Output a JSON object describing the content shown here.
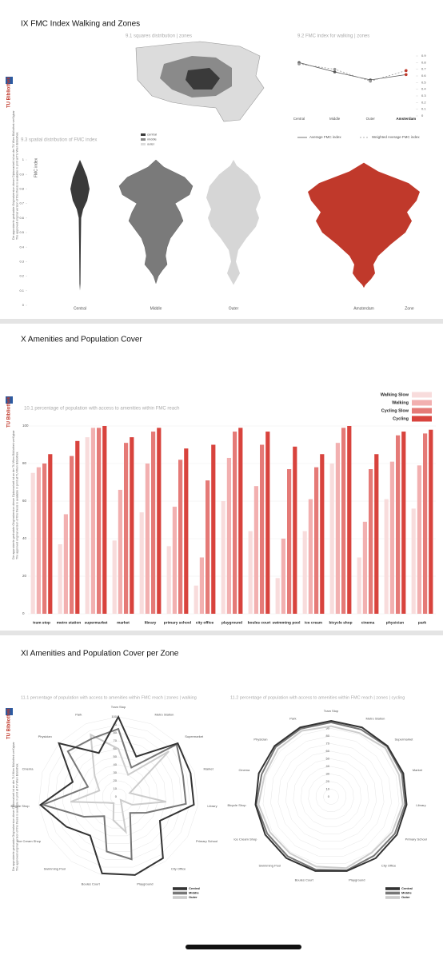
{
  "sidebar": {
    "logo": "TU Bibliothek",
    "note_de": "Die approbierte gedruckte Originalversion dieser Diplomarbeit ist an der TU Wien Bibliothek verfügbar",
    "note_en": "The approved original version of this thesis is available in print at TU Wien Bibliothek."
  },
  "sections": [
    {
      "title": "IX FMC Index Walking and Zones",
      "map": {
        "title": "9.1 squares distribution | zones",
        "legend": [
          "central",
          "middle",
          "outer"
        ]
      },
      "line_chart": {
        "type": "line",
        "title": "9.2 FMC index for walking | zones",
        "categories": [
          "Central",
          "Middle",
          "Outer",
          "Amsterdam"
        ],
        "series": [
          {
            "name": "Average FMC index",
            "color": "#555555",
            "values": [
              0.8,
              0.66,
              0.54,
              0.62
            ]
          },
          {
            "name": "Weighted Average FMC index",
            "color": "#999999",
            "values": [
              0.78,
              0.7,
              0.52,
              0.68
            ]
          }
        ],
        "ylim": [
          0,
          0.9
        ],
        "yticks": [
          0,
          0.1,
          0.2,
          0.3,
          0.4,
          0.5,
          0.6,
          0.7,
          0.8,
          0.9
        ]
      },
      "violin": {
        "type": "violin",
        "title": "9.3 spatial distribution of FMC index",
        "ylabel": "FMC index",
        "xlabel": "Zone",
        "categories": [
          "Central",
          "Middle",
          "Outer",
          "Amsterdam"
        ],
        "colors": [
          "#3a3a3a",
          "#7a7a7a",
          "#d6d6d6",
          "#c0392b"
        ],
        "ylim": [
          0,
          1
        ],
        "yticks": [
          0,
          0.1,
          0.2,
          0.3,
          0.4,
          0.5,
          0.6,
          0.7,
          0.8,
          0.9,
          1
        ]
      }
    },
    {
      "title": "X Amenities and Population Cover",
      "bar_chart": {
        "type": "bar",
        "title": "10.1 percentage of population with access to amenities within FMC reach",
        "categories": [
          "tram stop",
          "metro station",
          "supermarket",
          "market",
          "library",
          "primary school",
          "city office",
          "playground",
          "boules court",
          "swimming pool",
          "ice cream",
          "bicycle shop",
          "cinema",
          "physician",
          "park"
        ],
        "series": [
          {
            "name": "Walking Slow",
            "color": "#f8dcdc",
            "values": [
              75,
              37,
              94,
              39,
              54,
              36,
              15,
              60,
              44,
              19,
              44,
              80,
              30,
              61,
              56
            ]
          },
          {
            "name": "Walking",
            "color": "#f2b0b0",
            "values": [
              78,
              53,
              99,
              66,
              80,
              57,
              30,
              83,
              68,
              40,
              61,
              91,
              49,
              81,
              79
            ]
          },
          {
            "name": "Cycling Slow",
            "color": "#e57a77",
            "values": [
              80,
              84,
              99,
              91,
              97,
              82,
              71,
              97,
              90,
              77,
              78,
              99,
              77,
              95,
              96
            ]
          },
          {
            "name": "Cycling",
            "color": "#d8433d",
            "values": [
              85,
              92,
              100,
              94,
              99,
              88,
              90,
              99,
              97,
              89,
              85,
              100,
              85,
              97,
              98
            ]
          }
        ],
        "ylim": [
          0,
          100
        ],
        "yticks": [
          0,
          20,
          40,
          60,
          80,
          100
        ]
      }
    },
    {
      "title": "XI Amenities and Population Cover per Zone",
      "radar_charts": [
        {
          "type": "radar",
          "title": "11.1 percentage of population with access to amenities within FMC reach | zones | walking",
          "categories": [
            "Tram Stop",
            "Metro Station",
            "Supermarket",
            "Market",
            "Library",
            "Primary School",
            "City Office",
            "Playground",
            "Boules Court",
            "Swimming Pool",
            "Ice Cream Shop",
            "Bicycle Shop",
            "Cinema",
            "Physician",
            "Park"
          ],
          "series": [
            {
              "name": "Central",
              "color": "#333333",
              "values": [
                100,
                55,
                100,
                95,
                95,
                60,
                95,
                100,
                98,
                60,
                75,
                98,
                60,
                100,
                60
              ]
            },
            {
              "name": "Middle",
              "color": "#777777",
              "values": [
                85,
                40,
                98,
                85,
                85,
                40,
                25,
                80,
                70,
                30,
                50,
                95,
                40,
                85,
                80
              ]
            },
            {
              "name": "Outer",
              "color": "#cccccc",
              "values": [
                60,
                30,
                85,
                15,
                60,
                20,
                5,
                45,
                30,
                10,
                15,
                60,
                25,
                40,
                85
              ]
            }
          ],
          "rlim": [
            0,
            100
          ],
          "rticks": [
            0,
            10,
            20,
            30,
            40,
            50,
            60,
            70,
            80,
            90,
            100
          ]
        },
        {
          "type": "radar",
          "title": "11.2 percentage of population with access to amenities within FMC reach | zones | cycling",
          "categories": [
            "Tram Stop",
            "Metro Station",
            "Supermarket",
            "Market",
            "Library",
            "Primary School",
            "City Office",
            "Playground",
            "Boules Court",
            "Swimming Pool",
            "Ice Cream Shop",
            "Bicycle Shop",
            "Cinema",
            "Physician",
            "Park"
          ],
          "series": [
            {
              "name": "Central",
              "color": "#333333",
              "values": [
                100,
                100,
                100,
                100,
                100,
                100,
                100,
                100,
                100,
                100,
                100,
                100,
                100,
                100,
                100
              ]
            },
            {
              "name": "Middle",
              "color": "#777777",
              "values": [
                98,
                97,
                99,
                98,
                98,
                97,
                96,
                99,
                98,
                97,
                97,
                99,
                96,
                98,
                98
              ]
            },
            {
              "name": "Outer",
              "color": "#cccccc",
              "values": [
                93,
                92,
                96,
                94,
                95,
                93,
                91,
                96,
                94,
                92,
                93,
                96,
                92,
                94,
                95
              ]
            }
          ],
          "rlim": [
            0,
            100
          ],
          "rticks": [
            0,
            10,
            20,
            30,
            40,
            50,
            60,
            70,
            80,
            90
          ]
        }
      ]
    }
  ]
}
